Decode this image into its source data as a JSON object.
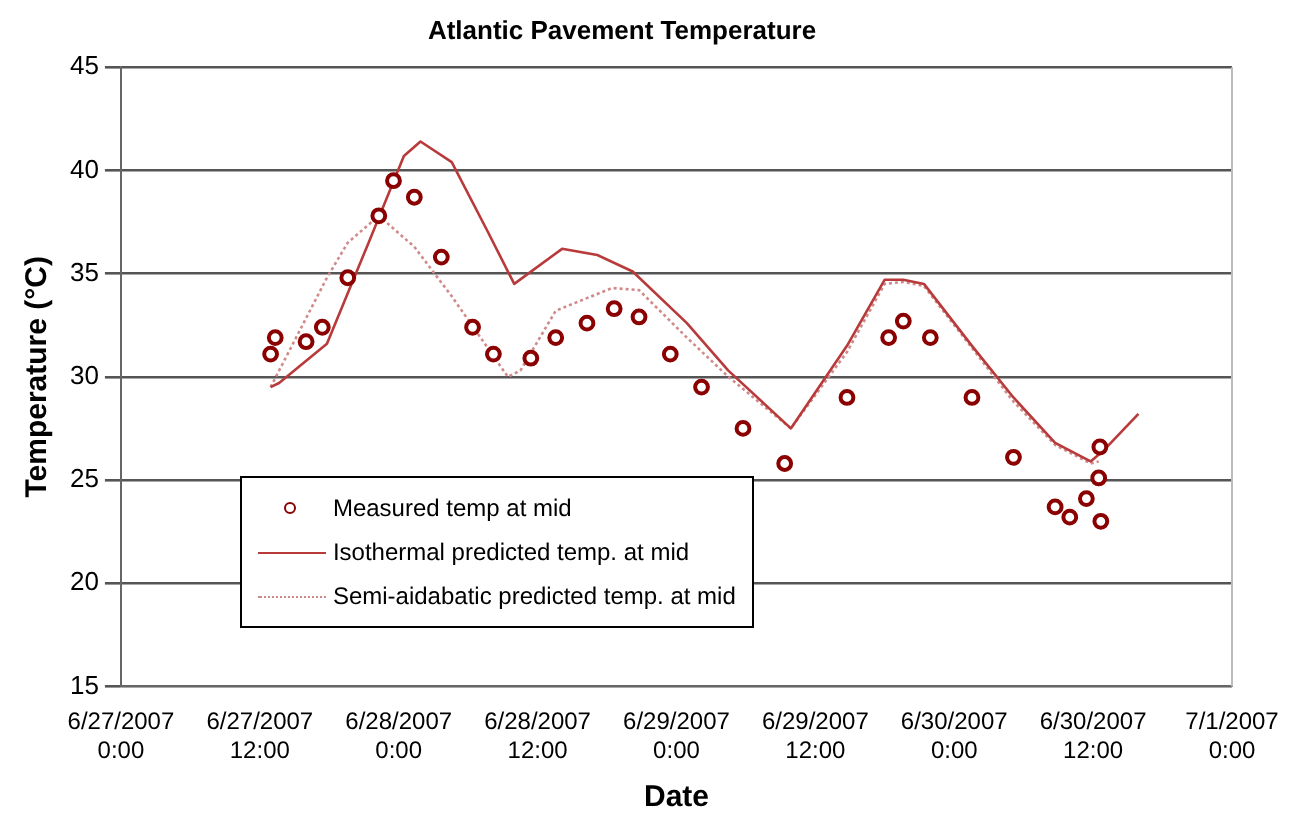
{
  "chart_data": {
    "type": "line",
    "title": "Atlantic Pavement Temperature",
    "xlabel": "Date",
    "ylabel": "Temperature (°C)",
    "xlim": [
      "2007-06-27T00:00",
      "2007-07-01T00:00"
    ],
    "xticks": [
      {
        "value": "2007-06-27T00:00",
        "label": "6/27/2007 0:00"
      },
      {
        "value": "2007-06-27T12:00",
        "label": "6/27/2007 12:00"
      },
      {
        "value": "2007-06-28T00:00",
        "label": "6/28/2007 0:00"
      },
      {
        "value": "2007-06-28T12:00",
        "label": "6/28/2007 12:00"
      },
      {
        "value": "2007-06-29T00:00",
        "label": "6/29/2007 0:00"
      },
      {
        "value": "2007-06-29T12:00",
        "label": "6/29/2007 12:00"
      },
      {
        "value": "2007-06-30T00:00",
        "label": "6/30/2007 0:00"
      },
      {
        "value": "2007-06-30T12:00",
        "label": "6/30/2007 12:00"
      },
      {
        "value": "2007-07-01T00:00",
        "label": "7/1/2007 0:00"
      }
    ],
    "ylim": [
      15,
      45
    ],
    "yticks": [
      15,
      20,
      25,
      30,
      35,
      40,
      45
    ],
    "grid": "y",
    "legend": "bottom left",
    "series": [
      {
        "name": "Measured temp at mid",
        "type": "scatter",
        "marker": "circle",
        "color": "#8b0000",
        "x": [
          "2007-06-27T12:56",
          "2007-06-27T13:20",
          "2007-06-27T16:00",
          "2007-06-27T17:24",
          "2007-06-27T19:36",
          "2007-06-27T22:17",
          "2007-06-27T23:33",
          "2007-06-28T01:21",
          "2007-06-28T03:41",
          "2007-06-28T06:23",
          "2007-06-28T08:11",
          "2007-06-28T11:25",
          "2007-06-28T13:34",
          "2007-06-28T16:16",
          "2007-06-28T18:37",
          "2007-06-28T20:46",
          "2007-06-28T23:28",
          "2007-06-29T02:10",
          "2007-06-29T05:45",
          "2007-06-29T09:21",
          "2007-06-29T14:44",
          "2007-06-29T18:20",
          "2007-06-29T19:36",
          "2007-06-29T21:56",
          "2007-06-30T01:32",
          "2007-06-30T05:07",
          "2007-06-30T08:43",
          "2007-06-30T09:59",
          "2007-06-30T11:25",
          "2007-06-30T12:29",
          "2007-06-30T12:35",
          "2007-06-30T12:40"
        ],
        "values": [
          31.1,
          31.9,
          31.7,
          32.4,
          34.8,
          37.8,
          39.5,
          38.7,
          35.8,
          32.4,
          31.1,
          30.9,
          31.9,
          32.6,
          33.3,
          32.9,
          31.1,
          29.5,
          27.5,
          25.8,
          29.0,
          31.9,
          32.7,
          31.9,
          29.0,
          26.1,
          23.7,
          23.2,
          24.1,
          25.1,
          26.6,
          23.0
        ]
      },
      {
        "name": "Isothermal predicted temp. at mid",
        "type": "line",
        "line_style": "solid",
        "color": "#b83a3a",
        "x": [
          "2007-06-27T12:56",
          "2007-06-27T13:40",
          "2007-06-27T17:48",
          "2007-06-27T21:24",
          "2007-06-28T00:27",
          "2007-06-28T01:53",
          "2007-06-28T04:35",
          "2007-06-28T07:38",
          "2007-06-28T09:59",
          "2007-06-28T14:07",
          "2007-06-28T17:10",
          "2007-06-28T20:13",
          "2007-06-29T00:54",
          "2007-06-29T04:29",
          "2007-06-29T09:53",
          "2007-06-29T14:44",
          "2007-06-29T17:59",
          "2007-06-29T19:36",
          "2007-06-29T21:23",
          "2007-06-30T01:32",
          "2007-06-30T05:07",
          "2007-06-30T08:43",
          "2007-06-30T11:47",
          "2007-06-30T12:51",
          "2007-06-30T15:55"
        ],
        "values": [
          29.5,
          29.7,
          31.6,
          36.5,
          40.7,
          41.4,
          40.4,
          37.1,
          34.5,
          36.2,
          35.9,
          35.1,
          32.6,
          30.3,
          27.5,
          31.5,
          34.7,
          34.7,
          34.5,
          31.5,
          29.0,
          26.8,
          25.9,
          26.4,
          28.2
        ]
      },
      {
        "name": "Semi-aidabatic predicted temp. at mid",
        "type": "line",
        "line_style": "dotted",
        "color": "#d08a8a",
        "x": [
          "2007-06-27T12:56",
          "2007-06-27T17:48",
          "2007-06-27T19:36",
          "2007-06-27T22:17",
          "2007-06-28T01:21",
          "2007-06-28T04:35",
          "2007-06-28T09:26",
          "2007-06-28T10:31",
          "2007-06-28T13:34",
          "2007-06-28T18:26",
          "2007-06-28T20:46",
          "2007-06-29T00:54",
          "2007-06-29T04:29",
          "2007-06-29T09:53",
          "2007-06-29T14:44",
          "2007-06-29T17:59",
          "2007-06-29T19:36",
          "2007-06-29T21:23",
          "2007-06-30T01:32",
          "2007-06-30T05:07",
          "2007-06-30T08:43",
          "2007-06-30T11:47",
          "2007-06-30T12:29"
        ],
        "values": [
          29.5,
          34.8,
          36.5,
          37.8,
          36.3,
          33.9,
          30.0,
          30.3,
          33.2,
          34.3,
          34.2,
          31.9,
          30.0,
          27.5,
          31.2,
          34.5,
          34.6,
          34.4,
          31.4,
          28.8,
          26.7,
          25.8,
          25.9
        ]
      }
    ]
  }
}
